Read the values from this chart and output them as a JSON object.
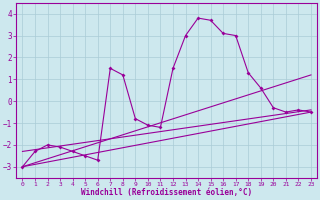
{
  "xlabel": "Windchill (Refroidissement éolien,°C)",
  "background_color": "#cde8ee",
  "grid_color": "#aaccd6",
  "line_color": "#990099",
  "xlim": [
    -0.5,
    23.5
  ],
  "ylim": [
    -3.5,
    4.5
  ],
  "xticks": [
    0,
    1,
    2,
    3,
    4,
    5,
    6,
    7,
    8,
    9,
    10,
    11,
    12,
    13,
    14,
    15,
    16,
    17,
    18,
    19,
    20,
    21,
    22,
    23
  ],
  "yticks": [
    -3,
    -2,
    -1,
    0,
    1,
    2,
    3,
    4
  ],
  "series1_x": [
    0,
    1,
    2,
    3,
    4,
    5,
    6,
    7,
    8,
    9,
    10,
    11,
    12,
    13,
    14,
    15,
    16,
    17,
    18,
    19,
    20,
    21,
    22,
    23
  ],
  "series1_y": [
    -3.0,
    -2.3,
    -2.0,
    -2.1,
    -2.3,
    -2.5,
    -2.7,
    1.5,
    1.2,
    -0.8,
    -1.1,
    -1.2,
    1.5,
    3.0,
    3.8,
    3.7,
    3.1,
    3.0,
    1.3,
    0.6,
    -0.3,
    -0.5,
    -0.4,
    -0.5
  ],
  "series2_x": [
    0,
    23
  ],
  "series2_y": [
    -3.0,
    -0.5
  ],
  "series3_x": [
    0,
    23
  ],
  "series3_y": [
    -3.0,
    1.2
  ],
  "series4_x": [
    0,
    23
  ],
  "series4_y": [
    -2.3,
    -0.4
  ]
}
